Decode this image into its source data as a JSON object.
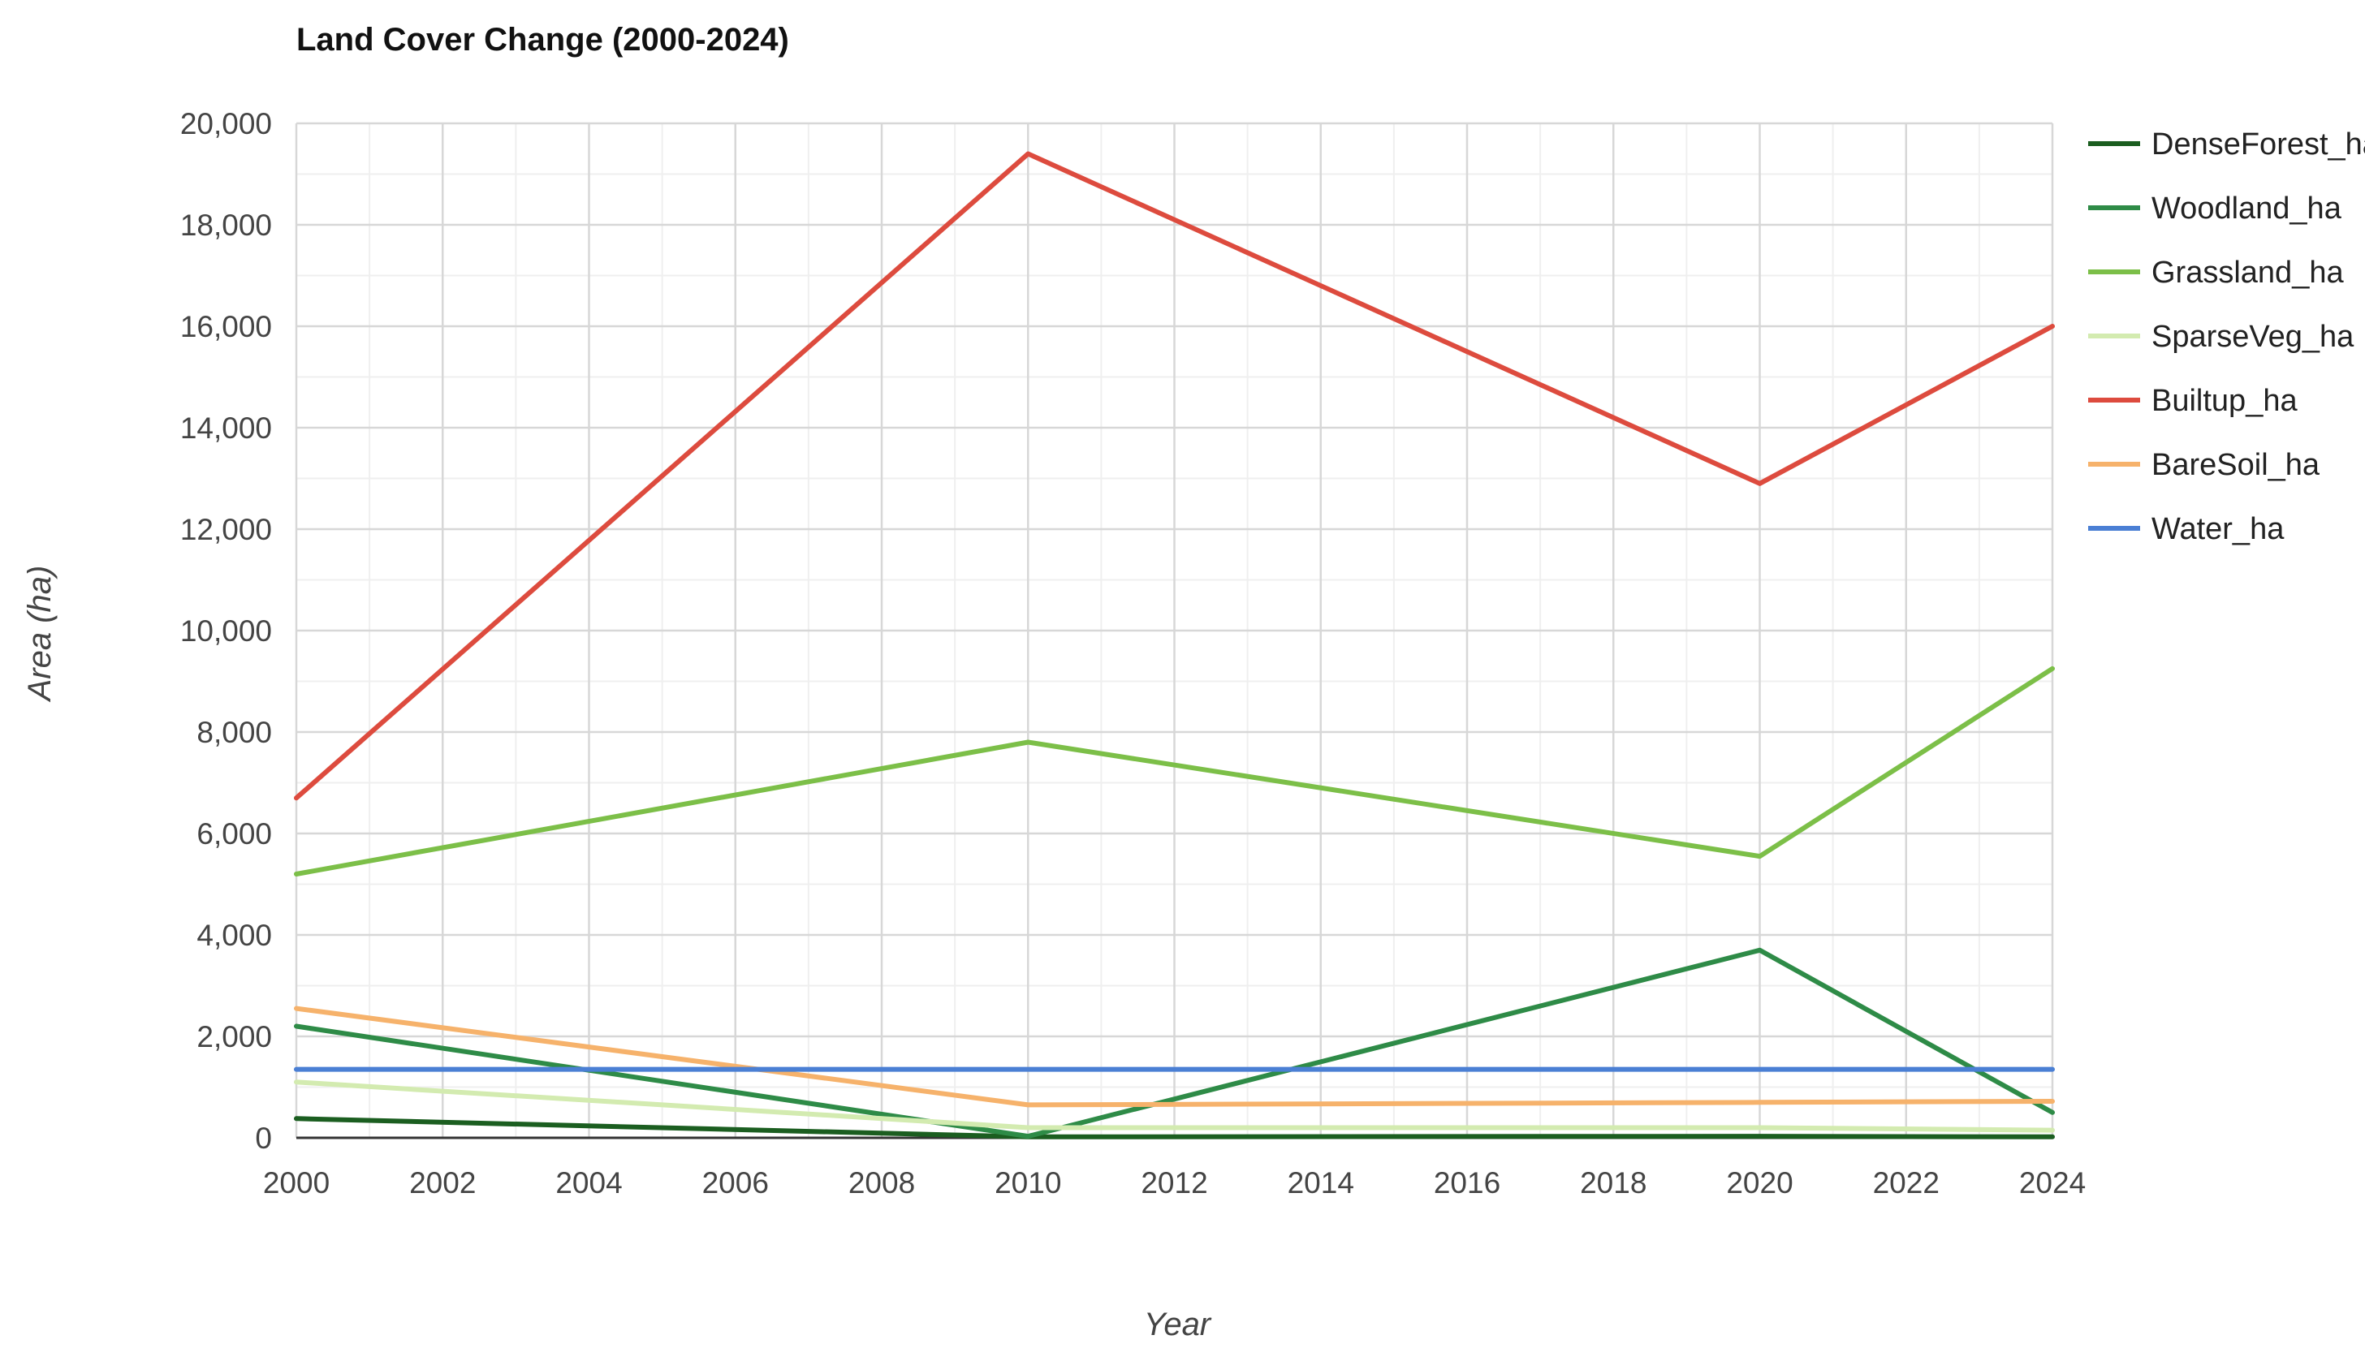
{
  "chart_data": {
    "type": "line",
    "title": "Land Cover Change (2000-2024)",
    "xlabel": "Year",
    "ylabel": "Area (ha)",
    "xlim": [
      2000,
      2024
    ],
    "ylim": [
      0,
      20000
    ],
    "x_ticks": [
      2000,
      2002,
      2004,
      2006,
      2008,
      2010,
      2012,
      2014,
      2016,
      2018,
      2020,
      2022,
      2024
    ],
    "x_tick_labels": [
      "2000",
      "2002",
      "2004",
      "2006",
      "2008",
      "2010",
      "2012",
      "2014",
      "2016",
      "2018",
      "2020",
      "2022",
      "2024"
    ],
    "y_ticks": [
      0,
      2000,
      4000,
      6000,
      8000,
      10000,
      12000,
      14000,
      16000,
      18000,
      20000
    ],
    "y_tick_labels": [
      "0",
      "2,000",
      "4,000",
      "6,000",
      "8,000",
      "10,000",
      "12,000",
      "14,000",
      "16,000",
      "18,000",
      "20,000"
    ],
    "grid": true,
    "legend_position": "right",
    "x": [
      2000,
      2010,
      2020,
      2024
    ],
    "series": [
      {
        "name": "DenseForest_ha",
        "color": "#1b5e20",
        "values": [
          380,
          20,
          30,
          20
        ]
      },
      {
        "name": "Woodland_ha",
        "color": "#2e8b47",
        "values": [
          2200,
          30,
          3700,
          500
        ]
      },
      {
        "name": "Grassland_ha",
        "color": "#7cbf48",
        "values": [
          5200,
          7800,
          5550,
          9250
        ]
      },
      {
        "name": "SparseVeg_ha",
        "color": "#d3ebb0",
        "values": [
          1100,
          200,
          200,
          150
        ]
      },
      {
        "name": "Builtup_ha",
        "color": "#dd4b3e",
        "values": [
          6700,
          19400,
          12900,
          16000
        ]
      },
      {
        "name": "BareSoil_ha",
        "color": "#f6b26b",
        "values": [
          2550,
          650,
          700,
          720
        ]
      },
      {
        "name": "Water_ha",
        "color": "#4a7fd4",
        "values": [
          1350,
          1350,
          1350,
          1350
        ]
      }
    ]
  }
}
